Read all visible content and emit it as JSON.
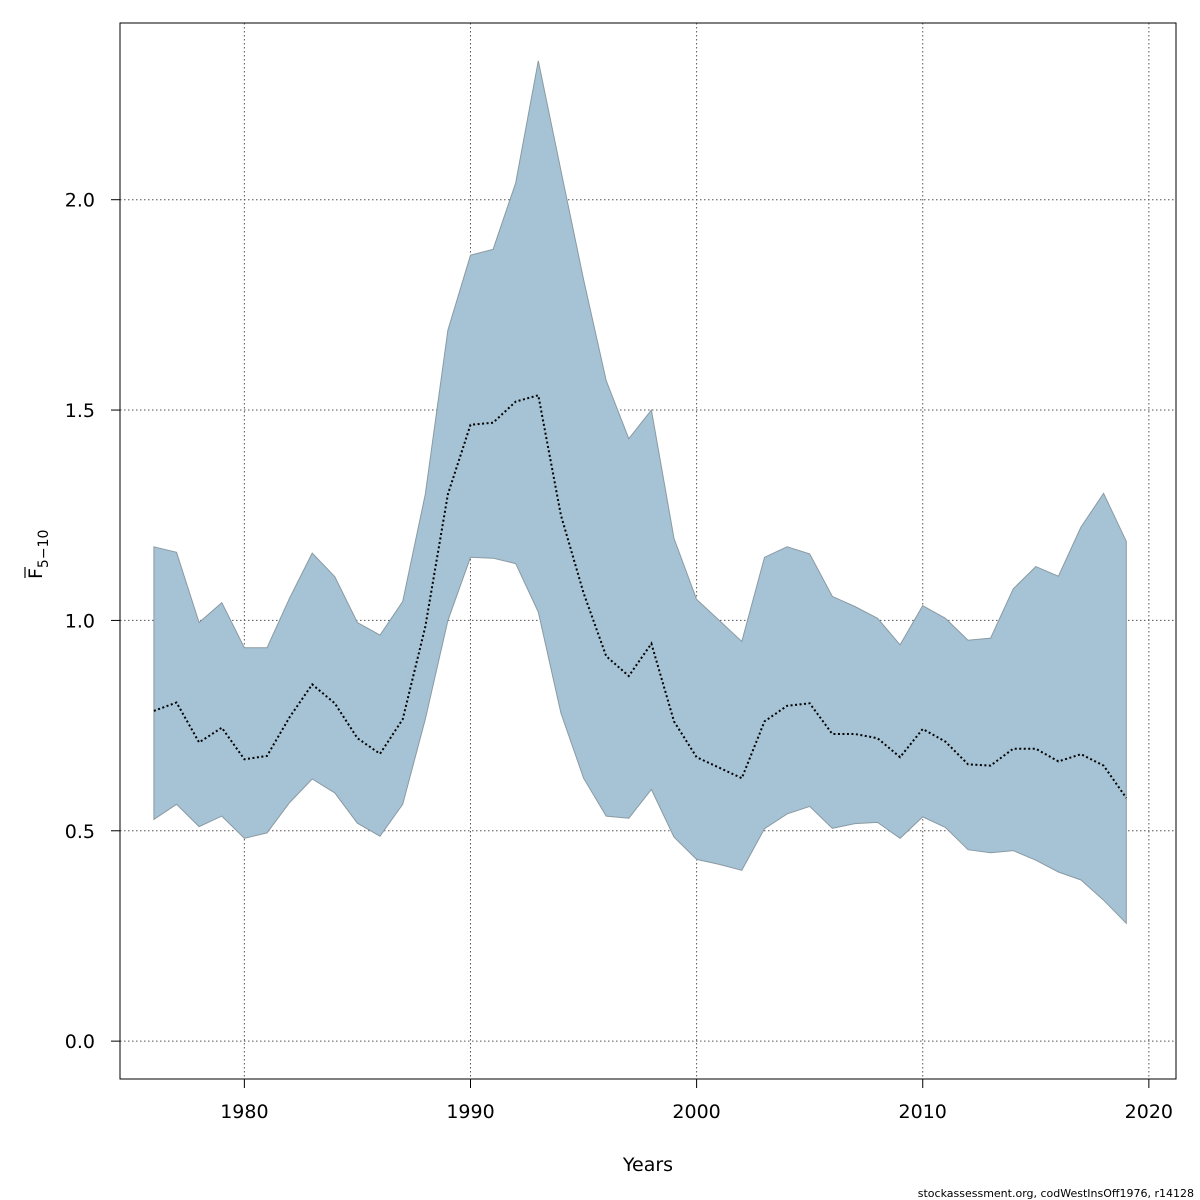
{
  "chart_data": {
    "type": "area",
    "xlabel": "Years",
    "ylabel_main": "F",
    "ylabel_sub": "5−10",
    "xlim": [
      1974.5,
      2021.2
    ],
    "ylim": [
      -0.09,
      2.42
    ],
    "x_ticks": [
      1980,
      1990,
      2000,
      2010,
      2020
    ],
    "y_ticks": [
      0.0,
      0.5,
      1.0,
      1.5,
      2.0
    ],
    "x_tick_labels": [
      "1980",
      "1990",
      "2000",
      "2010",
      "2020"
    ],
    "y_tick_labels": [
      "0.0",
      "0.5",
      "1.0",
      "1.5",
      "2.0"
    ],
    "grid": true,
    "colors": {
      "band": "#a5c3d5",
      "band_edge": "#8a9aa3",
      "line": "#000000",
      "grid": "#555555"
    },
    "years": [
      1976,
      1977,
      1978,
      1979,
      1980,
      1981,
      1982,
      1983,
      1984,
      1985,
      1986,
      1987,
      1988,
      1989,
      1990,
      1991,
      1992,
      1993,
      1994,
      1995,
      1996,
      1997,
      1998,
      1999,
      2000,
      2001,
      2002,
      2003,
      2004,
      2005,
      2006,
      2007,
      2008,
      2009,
      2010,
      2011,
      2012,
      2013,
      2014,
      2015,
      2016,
      2017,
      2018,
      2019
    ],
    "series": [
      {
        "name": "",
        "role": "estimate",
        "values": [
          0.785,
          0.805,
          0.71,
          0.745,
          0.67,
          0.678,
          0.77,
          0.848,
          0.803,
          0.72,
          0.683,
          0.765,
          0.985,
          1.3,
          1.465,
          1.47,
          1.52,
          1.535,
          1.25,
          1.065,
          0.915,
          0.868,
          0.945,
          0.76,
          0.675,
          0.65,
          0.625,
          0.76,
          0.797,
          0.803,
          0.73,
          0.73,
          0.72,
          0.675,
          0.742,
          0.712,
          0.658,
          0.655,
          0.695,
          0.695,
          0.665,
          0.682,
          0.655,
          0.578
        ]
      },
      {
        "name": "",
        "role": "upper",
        "values": [
          1.175,
          1.162,
          0.995,
          1.042,
          0.935,
          0.935,
          1.053,
          1.16,
          1.104,
          0.995,
          0.965,
          1.045,
          1.3,
          1.69,
          1.868,
          1.882,
          2.04,
          2.33,
          2.07,
          1.81,
          1.57,
          1.432,
          1.5,
          1.195,
          1.05,
          1.0,
          0.95,
          1.15,
          1.175,
          1.158,
          1.057,
          1.033,
          1.005,
          0.942,
          1.035,
          1.005,
          0.953,
          0.958,
          1.075,
          1.128,
          1.105,
          1.222,
          1.302,
          1.188
        ]
      },
      {
        "name": "",
        "role": "lower",
        "values": [
          0.527,
          0.563,
          0.51,
          0.535,
          0.482,
          0.495,
          0.567,
          0.623,
          0.59,
          0.518,
          0.487,
          0.563,
          0.765,
          1.0,
          1.15,
          1.148,
          1.135,
          1.02,
          0.78,
          0.625,
          0.535,
          0.53,
          0.598,
          0.485,
          0.432,
          0.42,
          0.406,
          0.505,
          0.54,
          0.558,
          0.506,
          0.517,
          0.52,
          0.482,
          0.533,
          0.508,
          0.455,
          0.448,
          0.453,
          0.43,
          0.402,
          0.383,
          0.335,
          0.28
        ]
      }
    ],
    "credit": "stockassessment.org, codWestInsOff1976, r14128"
  }
}
